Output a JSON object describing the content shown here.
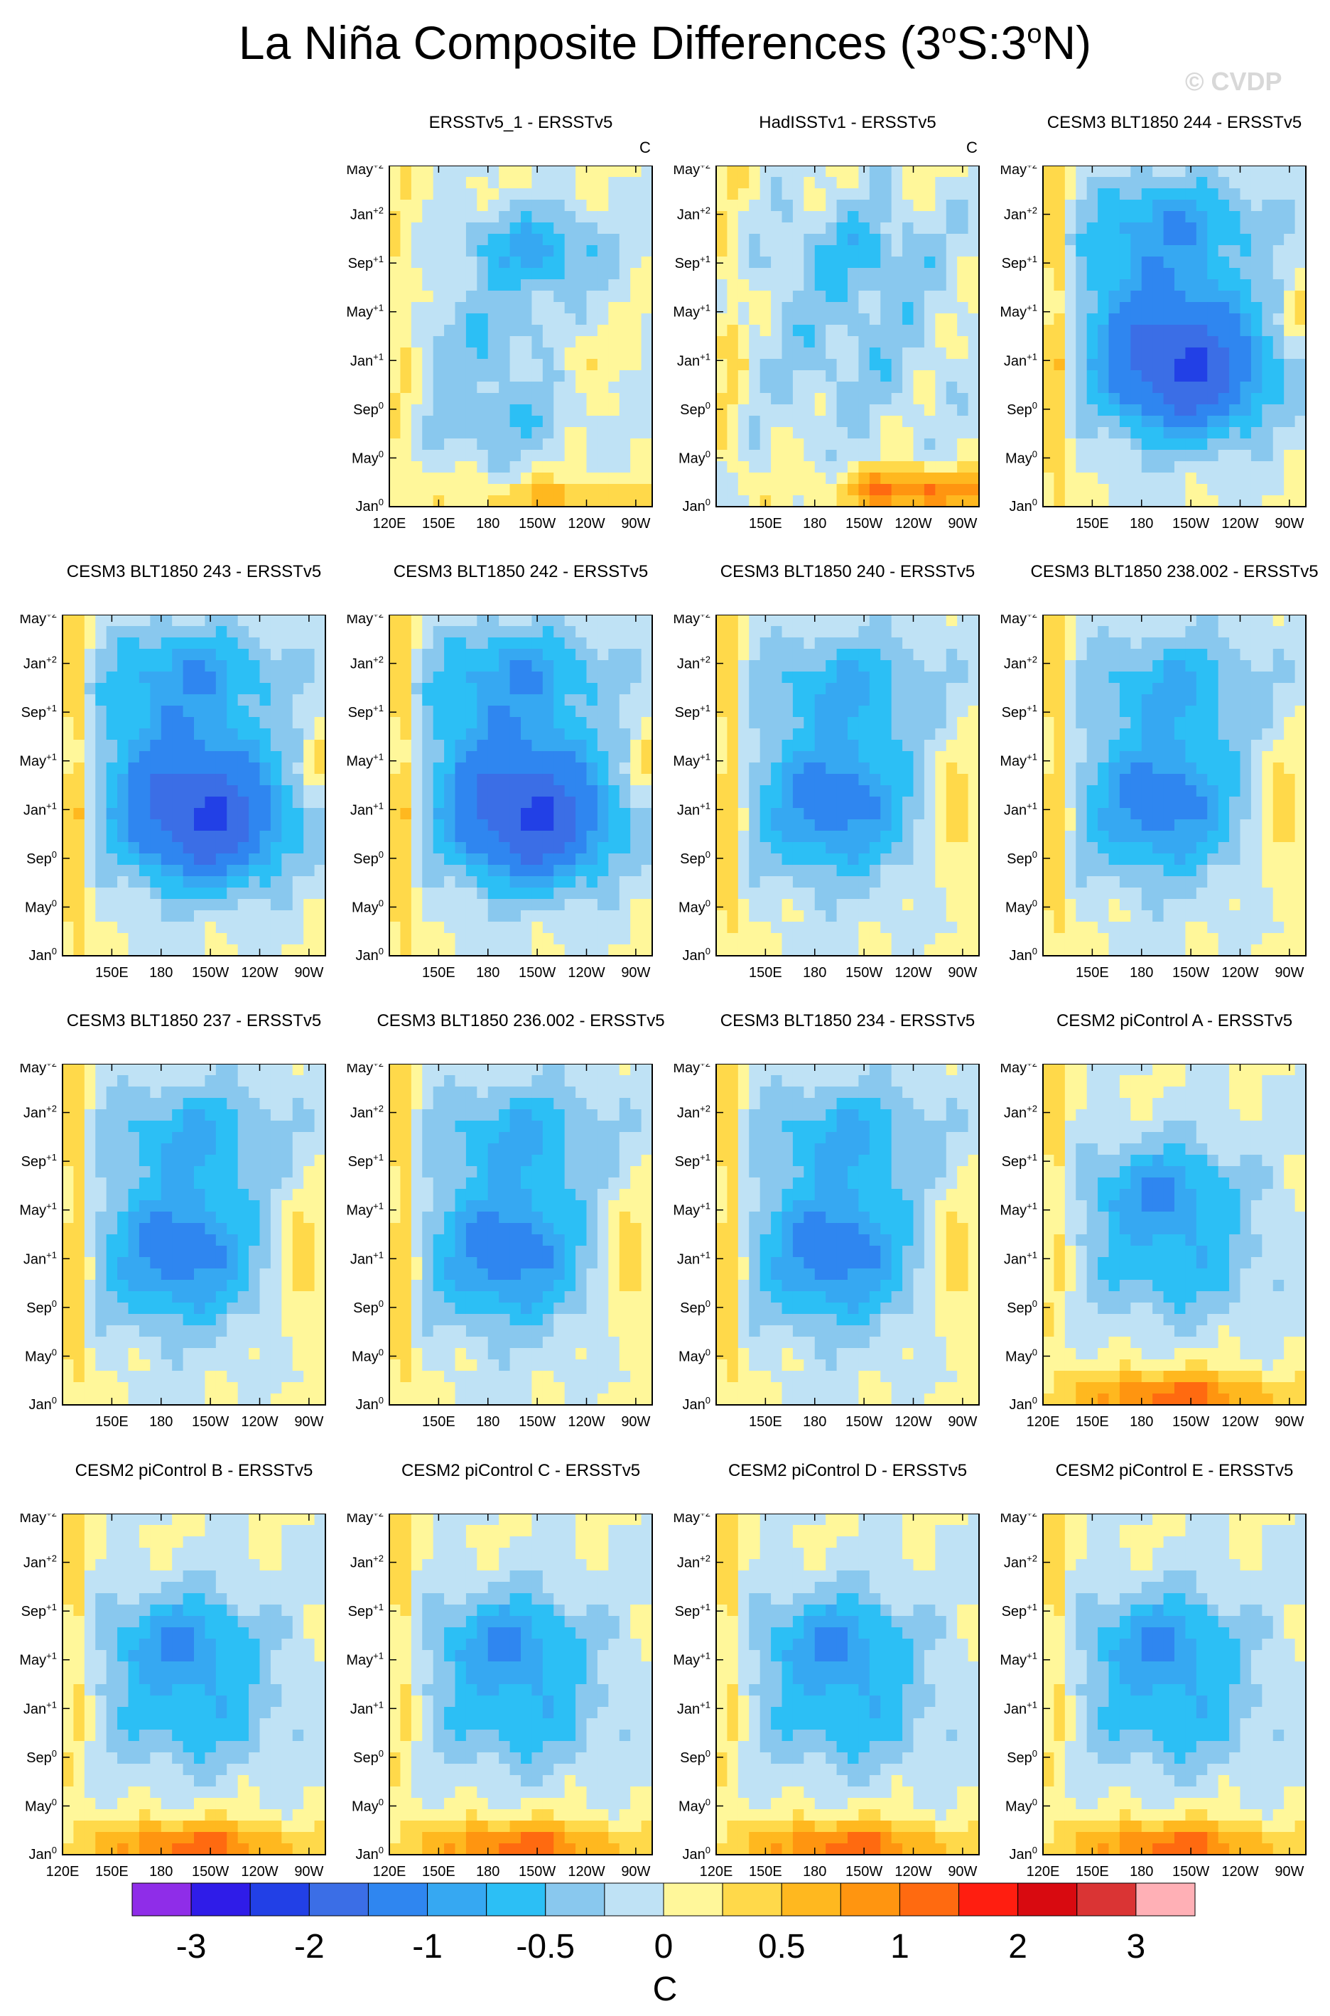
{
  "title": {
    "text": "La Niña Composite Differences (3",
    "sup1": "o",
    "mid": "S:3",
    "sup2": "o",
    "end": "N)"
  },
  "watermark": "© CVDP",
  "chart_data": {
    "type": "heatmap",
    "description_units": "C",
    "y_tick_labels": [
      {
        "base": "May",
        "sup": "+2"
      },
      {
        "base": "Jan",
        "sup": "+2"
      },
      {
        "base": "Sep",
        "sup": "+1"
      },
      {
        "base": "May",
        "sup": "+1"
      },
      {
        "base": "Jan",
        "sup": "+1"
      },
      {
        "base": "Sep",
        "sup": "0"
      },
      {
        "base": "May",
        "sup": "0"
      },
      {
        "base": "Jan",
        "sup": "0"
      }
    ],
    "x_tick_labels": [
      "120E",
      "150E",
      "180",
      "150W",
      "120W",
      "90W"
    ],
    "x_range": [
      "120E",
      "80W"
    ],
    "panels": [
      {
        "title": "ERSSTv5_1 - ERSSTv5",
        "unit": "C",
        "show_120E": true,
        "pattern": "obs1"
      },
      {
        "title": "HadISSTv1 - ERSSTv5",
        "unit": "C",
        "show_120E": false,
        "pattern": "obs2"
      },
      {
        "title": "CESM3 BLT1850 244 - ERSSTv5",
        "unit": "",
        "show_120E": false,
        "pattern": "strong"
      },
      {
        "title": "CESM3 BLT1850 243 - ERSSTv5",
        "unit": "",
        "show_120E": false,
        "pattern": "strong"
      },
      {
        "title": "CESM3 BLT1850 242 - ERSSTv5",
        "unit": "",
        "show_120E": false,
        "pattern": "strong"
      },
      {
        "title": "CESM3 BLT1850 240 - ERSSTv5",
        "unit": "",
        "show_120E": false,
        "pattern": "medium"
      },
      {
        "title": "CESM3 BLT1850 238.002 - ERSSTv5",
        "unit": "",
        "show_120E": false,
        "pattern": "medium"
      },
      {
        "title": "CESM3 BLT1850 237 - ERSSTv5",
        "unit": "",
        "show_120E": false,
        "pattern": "medium"
      },
      {
        "title": "CESM3 BLT1850 236.002 - ERSSTv5",
        "unit": "",
        "show_120E": false,
        "pattern": "medium"
      },
      {
        "title": "CESM3 BLT1850 234 - ERSSTv5",
        "unit": "",
        "show_120E": false,
        "pattern": "medium"
      },
      {
        "title": "CESM2 piControl A - ERSSTv5",
        "unit": "",
        "show_120E": true,
        "pattern": "warmbottom"
      },
      {
        "title": "CESM2 piControl B - ERSSTv5",
        "unit": "",
        "show_120E": true,
        "pattern": "warmbottom"
      },
      {
        "title": "CESM2 piControl C - ERSSTv5",
        "unit": "",
        "show_120E": true,
        "pattern": "warmbottom"
      },
      {
        "title": "CESM2 piControl D - ERSSTv5",
        "unit": "",
        "show_120E": true,
        "pattern": "warmbottom"
      },
      {
        "title": "CESM2 piControl E - ERSSTv5",
        "unit": "",
        "show_120E": true,
        "pattern": "warmbottom"
      }
    ],
    "colorbar": {
      "colors": [
        "#8f2de8",
        "#2f1ce8",
        "#2240e6",
        "#3b6ee6",
        "#2f86f0",
        "#36a8f2",
        "#2cbff5",
        "#89c8ee",
        "#bfe2f5",
        "#fff79a",
        "#ffd94a",
        "#ffb81f",
        "#ff9510",
        "#ff6a10",
        "#ff1e10",
        "#d80a10",
        "#da3434",
        "#ffb0b6"
      ],
      "labels": [
        {
          "text": "-3",
          "index": 1
        },
        {
          "text": "-2",
          "index": 3
        },
        {
          "text": "-1",
          "index": 5
        },
        {
          "text": "-0.5",
          "index": 7
        },
        {
          "text": "0",
          "index": 9
        },
        {
          "text": "0.5",
          "index": 11
        },
        {
          "text": "1",
          "index": 13
        },
        {
          "text": "2",
          "index": 15
        },
        {
          "text": "3",
          "index": 17
        }
      ],
      "unit": "C"
    }
  }
}
